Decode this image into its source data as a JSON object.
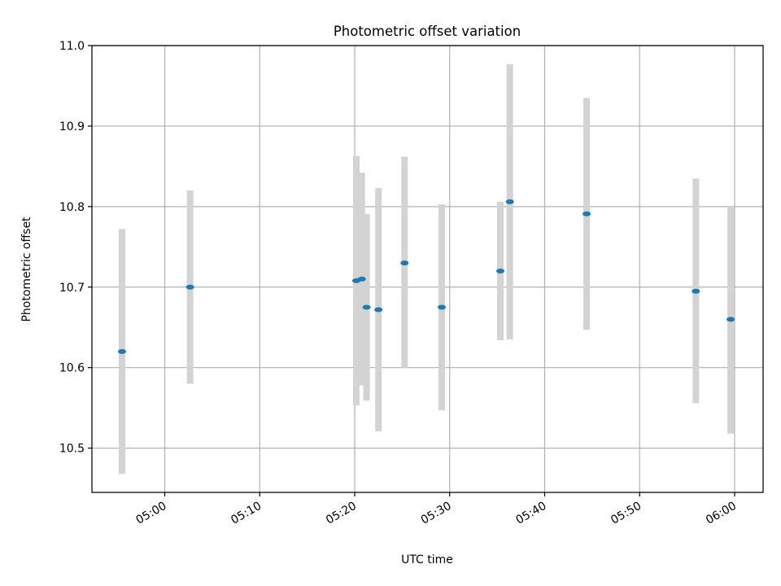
{
  "chart_data": {
    "type": "scatter",
    "title": "Photometric offset variation",
    "xlabel": "UTC time",
    "ylabel": "Photometric offset",
    "x_axis_type": "time",
    "xlim": [
      "04:52:20",
      "06:03:00"
    ],
    "ylim": [
      10.445,
      11.0
    ],
    "x_ticks": [
      "05:00",
      "05:10",
      "05:20",
      "05:30",
      "05:40",
      "05:50",
      "06:00"
    ],
    "y_ticks": [
      "10.5",
      "10.6",
      "10.7",
      "10.8",
      "10.9",
      "11.0"
    ],
    "grid": true,
    "legend": "none",
    "colors": {
      "marker": "#1f77b4",
      "error_bar": "#d3d3d3",
      "grid": "#b0b0b0"
    },
    "series": [
      {
        "points": [
          {
            "x": "04:55:30",
            "y": 10.62,
            "y_low": 10.468,
            "y_high": 10.772
          },
          {
            "x": "05:02:40",
            "y": 10.7,
            "y_low": 10.58,
            "y_high": 10.82
          },
          {
            "x": "05:20:10",
            "y": 10.708,
            "y_low": 10.553,
            "y_high": 10.863
          },
          {
            "x": "05:20:45",
            "y": 10.71,
            "y_low": 10.578,
            "y_high": 10.842
          },
          {
            "x": "05:21:15",
            "y": 10.675,
            "y_low": 10.559,
            "y_high": 10.791
          },
          {
            "x": "05:22:30",
            "y": 10.672,
            "y_low": 10.521,
            "y_high": 10.823
          },
          {
            "x": "05:25:15",
            "y": 10.73,
            "y_low": 10.6,
            "y_high": 10.862
          },
          {
            "x": "05:29:10",
            "y": 10.675,
            "y_low": 10.547,
            "y_high": 10.803
          },
          {
            "x": "05:35:20",
            "y": 10.72,
            "y_low": 10.634,
            "y_high": 10.806
          },
          {
            "x": "05:36:20",
            "y": 10.806,
            "y_low": 10.635,
            "y_high": 10.977
          },
          {
            "x": "05:44:25",
            "y": 10.791,
            "y_low": 10.647,
            "y_high": 10.935
          },
          {
            "x": "05:55:55",
            "y": 10.695,
            "y_low": 10.556,
            "y_high": 10.835
          },
          {
            "x": "05:59:35",
            "y": 10.66,
            "y_low": 10.518,
            "y_high": 10.8
          }
        ]
      }
    ]
  }
}
